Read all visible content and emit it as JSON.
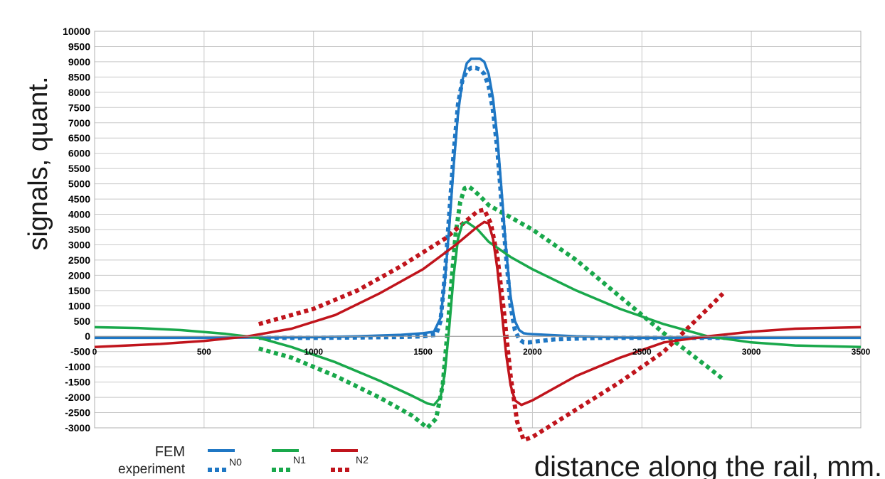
{
  "chart_data": {
    "type": "line",
    "xlabel": "distance along the rail, mm.",
    "ylabel": "signals, quant.",
    "xlim": [
      0,
      3500
    ],
    "ylim": [
      -3000,
      10000
    ],
    "x_ticks": [
      0,
      500,
      1000,
      1500,
      2000,
      2500,
      3000,
      3500
    ],
    "y_ticks": [
      -3000,
      -2500,
      -2000,
      -1500,
      -1000,
      -500,
      0,
      500,
      1000,
      1500,
      2000,
      2500,
      3000,
      3500,
      4000,
      4500,
      5000,
      5500,
      6000,
      6500,
      7000,
      7500,
      8000,
      8500,
      9000,
      9500,
      10000
    ],
    "grid": true,
    "legend": {
      "placement": "bottom-left",
      "row_labels": [
        "FEM",
        "experiment"
      ],
      "entries": [
        "N0",
        "N1",
        "N2"
      ]
    },
    "colors": {
      "N0": "#1f77c4",
      "N1": "#19a84b",
      "N2": "#c0141c"
    },
    "series": [
      {
        "name": "N0",
        "kind": "FEM",
        "style": "solid",
        "color": "#1f77c4",
        "x": [
          0,
          500,
          1000,
          1200,
          1400,
          1500,
          1550,
          1580,
          1600,
          1620,
          1640,
          1660,
          1680,
          1700,
          1720,
          1740,
          1760,
          1780,
          1800,
          1820,
          1840,
          1860,
          1880,
          1900,
          1920,
          1940,
          1960,
          1980,
          2000,
          2200,
          2500,
          2800,
          3000,
          3500
        ],
        "y": [
          -50,
          -50,
          -30,
          0,
          50,
          100,
          150,
          600,
          1800,
          3600,
          5600,
          7300,
          8400,
          8950,
          9100,
          9100,
          9100,
          9000,
          8600,
          7800,
          6500,
          4700,
          2800,
          1300,
          500,
          200,
          100,
          80,
          70,
          0,
          -50,
          -50,
          -50,
          -50
        ]
      },
      {
        "name": "N0",
        "kind": "experiment",
        "style": "dotted",
        "color": "#1f77c4",
        "x": [
          750,
          1000,
          1200,
          1400,
          1500,
          1560,
          1580,
          1600,
          1620,
          1640,
          1660,
          1680,
          1700,
          1720,
          1740,
          1760,
          1780,
          1800,
          1820,
          1840,
          1860,
          1880,
          1900,
          1920,
          1940,
          1960,
          1980,
          2100,
          2300,
          2500,
          2700,
          2900
        ],
        "y": [
          -50,
          -50,
          -40,
          -20,
          0,
          50,
          500,
          2000,
          4000,
          6000,
          7600,
          8400,
          8700,
          8800,
          8800,
          8750,
          8600,
          8200,
          7400,
          6100,
          4300,
          2600,
          1000,
          200,
          -100,
          -200,
          -200,
          -100,
          -50,
          -50,
          -50,
          -50
        ]
      },
      {
        "name": "N1",
        "kind": "FEM",
        "style": "solid",
        "color": "#19a84b",
        "x": [
          0,
          200,
          400,
          600,
          750,
          900,
          1100,
          1300,
          1450,
          1520,
          1550,
          1580,
          1600,
          1620,
          1640,
          1660,
          1680,
          1700,
          1750,
          1800,
          1900,
          2000,
          2200,
          2400,
          2600,
          2800,
          3000,
          3200,
          3500
        ],
        "y": [
          300,
          270,
          200,
          80,
          -50,
          -350,
          -850,
          -1450,
          -1950,
          -2200,
          -2250,
          -2000,
          -1200,
          300,
          2000,
          3200,
          3700,
          3750,
          3500,
          3100,
          2600,
          2200,
          1500,
          900,
          400,
          0,
          -200,
          -300,
          -350
        ]
      },
      {
        "name": "N1",
        "kind": "experiment",
        "style": "dotted",
        "color": "#19a84b",
        "x": [
          750,
          900,
          1100,
          1300,
          1450,
          1520,
          1560,
          1590,
          1610,
          1630,
          1650,
          1670,
          1690,
          1710,
          1730,
          1760,
          1800,
          1900,
          2000,
          2200,
          2400,
          2600,
          2800,
          2870
        ],
        "y": [
          -400,
          -700,
          -1300,
          -2000,
          -2600,
          -3000,
          -2700,
          -1600,
          0,
          1800,
          3400,
          4400,
          4850,
          4900,
          4800,
          4600,
          4300,
          3900,
          3500,
          2500,
          1300,
          100,
          -1000,
          -1400
        ]
      },
      {
        "name": "N2",
        "kind": "FEM",
        "style": "solid",
        "color": "#c0141c",
        "x": [
          0,
          300,
          500,
          700,
          900,
          1100,
          1300,
          1500,
          1650,
          1750,
          1780,
          1800,
          1820,
          1840,
          1860,
          1880,
          1900,
          1920,
          1950,
          2000,
          2200,
          2400,
          2600,
          2800,
          3000,
          3200,
          3500
        ],
        "y": [
          -350,
          -250,
          -150,
          0,
          250,
          700,
          1400,
          2200,
          3000,
          3600,
          3750,
          3700,
          3200,
          2200,
          800,
          -600,
          -1600,
          -2100,
          -2250,
          -2100,
          -1300,
          -700,
          -200,
          0,
          150,
          250,
          300
        ]
      },
      {
        "name": "N2",
        "kind": "experiment",
        "style": "dotted",
        "color": "#c0141c",
        "x": [
          750,
          1000,
          1200,
          1400,
          1600,
          1700,
          1750,
          1780,
          1810,
          1840,
          1870,
          1900,
          1930,
          1960,
          2000,
          2200,
          2400,
          2600,
          2800,
          2870
        ],
        "y": [
          400,
          900,
          1500,
          2300,
          3200,
          3800,
          4100,
          4150,
          3700,
          2600,
          800,
          -1300,
          -2800,
          -3400,
          -3300,
          -2400,
          -1500,
          -500,
          900,
          1400
        ]
      }
    ]
  }
}
